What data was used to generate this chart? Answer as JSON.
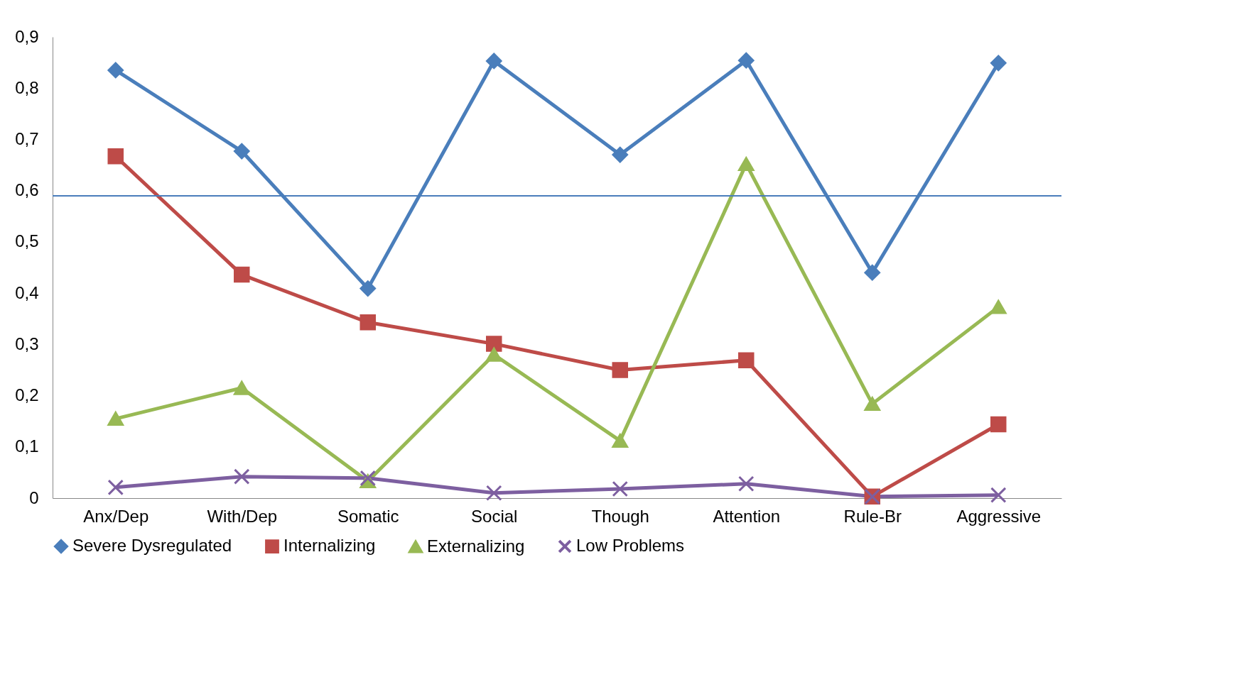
{
  "chart_data": {
    "type": "line",
    "categories": [
      "Anx/Dep",
      "With/Dep",
      "Somatic",
      "Social",
      "Though",
      "Attention",
      "Rule-Br",
      "Aggressive"
    ],
    "series": [
      {
        "name": "Severe Dysregulated",
        "color": "#4a7ebb",
        "marker": "diamond",
        "values": [
          0.835,
          0.677,
          0.409,
          0.853,
          0.67,
          0.854,
          0.44,
          0.849
        ]
      },
      {
        "name": "Internalizing",
        "color": "#be4b48",
        "marker": "square",
        "values": [
          0.667,
          0.436,
          0.343,
          0.301,
          0.25,
          0.269,
          0.003,
          0.144
        ]
      },
      {
        "name": "Externalizing",
        "color": "#98b954",
        "marker": "triangle",
        "values": [
          0.155,
          0.215,
          0.033,
          0.28,
          0.112,
          0.652,
          0.184,
          0.373
        ]
      },
      {
        "name": "Low Problems",
        "color": "#7d5fa0",
        "marker": "cross",
        "values": [
          0.021,
          0.042,
          0.039,
          0.01,
          0.018,
          0.028,
          0.003,
          0.006
        ]
      }
    ],
    "ylim": [
      0,
      0.9
    ],
    "yticks": [
      {
        "value": 0,
        "label": "0"
      },
      {
        "value": 0.1,
        "label": "0,1"
      },
      {
        "value": 0.2,
        "label": "0,2"
      },
      {
        "value": 0.3,
        "label": "0,3"
      },
      {
        "value": 0.4,
        "label": "0,4"
      },
      {
        "value": 0.5,
        "label": "0,5"
      },
      {
        "value": 0.6,
        "label": "0,6"
      },
      {
        "value": 0.7,
        "label": "0,7"
      },
      {
        "value": 0.8,
        "label": "0,8"
      },
      {
        "value": 0.9,
        "label": "0,9"
      }
    ],
    "ref_lines": [
      {
        "axis": "y",
        "value": 0.59,
        "color": "#4a7ebb"
      }
    ],
    "grid": false,
    "legend": "bottom",
    "line_style": "solid"
  }
}
